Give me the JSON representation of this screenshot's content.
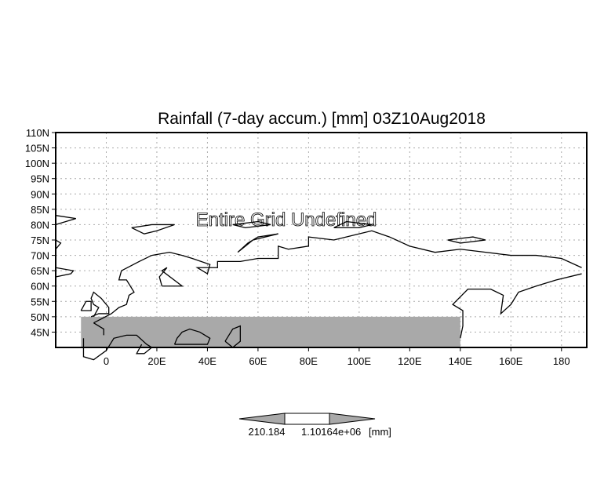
{
  "chart_data": {
    "type": "heatmap",
    "title": "Rainfall (7-day accum.) [mm] 03Z10Aug2018",
    "annotation": "Entire Grid Undefined",
    "xlim": [
      -20,
      190
    ],
    "ylim": [
      40,
      110
    ],
    "x_ticks": [
      {
        "value": 0,
        "label": "0"
      },
      {
        "value": 20,
        "label": "20E"
      },
      {
        "value": 40,
        "label": "40E"
      },
      {
        "value": 60,
        "label": "60E"
      },
      {
        "value": 80,
        "label": "80E"
      },
      {
        "value": 100,
        "label": "100E"
      },
      {
        "value": 120,
        "label": "120E"
      },
      {
        "value": 140,
        "label": "140E"
      },
      {
        "value": 160,
        "label": "160E"
      },
      {
        "value": 180,
        "label": "180"
      }
    ],
    "y_ticks": [
      {
        "value": 110,
        "label": "110N"
      },
      {
        "value": 105,
        "label": "105N"
      },
      {
        "value": 100,
        "label": "100N"
      },
      {
        "value": 95,
        "label": "95N"
      },
      {
        "value": 90,
        "label": "90N"
      },
      {
        "value": 85,
        "label": "85N"
      },
      {
        "value": 80,
        "label": "80N"
      },
      {
        "value": 75,
        "label": "75N"
      },
      {
        "value": 70,
        "label": "70N"
      },
      {
        "value": 65,
        "label": "65N"
      },
      {
        "value": 60,
        "label": "60N"
      },
      {
        "value": 55,
        "label": "55N"
      },
      {
        "value": 50,
        "label": "50N"
      },
      {
        "value": 45,
        "label": "45N"
      }
    ],
    "grid": true,
    "shaded_region": {
      "lon": [
        -10,
        140
      ],
      "lat": [
        40,
        50
      ],
      "color": "#a9a9a9"
    },
    "colorbar": {
      "labels": [
        "210.184",
        "1.10164e+06"
      ],
      "unit": "[mm]",
      "colors": [
        "#a9a9a9",
        "#ffffff",
        "#a9a9a9"
      ]
    }
  }
}
